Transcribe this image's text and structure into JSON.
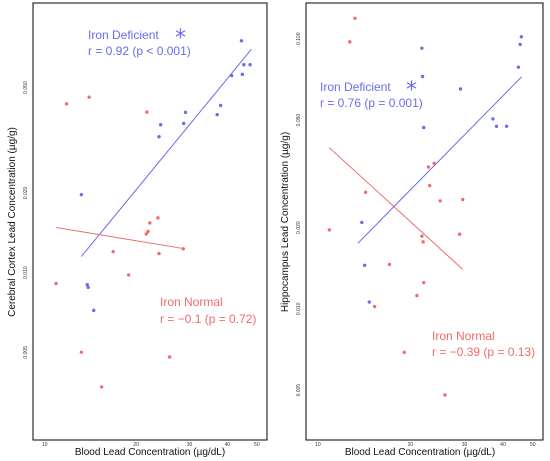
{
  "colors": {
    "iron_deficient": "#6b6bef",
    "iron_normal": "#f26b6b"
  },
  "chart_data": [
    {
      "type": "scatter",
      "xlabel": "Blood Lead Concentration (µg/dL)",
      "ylabel": "Cerebral Cortex Lead Concentration (µg/g)",
      "x_scale": "log",
      "y_scale": "log",
      "xlim": [
        9.5,
        52
      ],
      "ylim": [
        0.0025,
        0.09
      ],
      "x_ticks": [
        10,
        20,
        30,
        40,
        50
      ],
      "x_tick_labels": [
        "10",
        "20",
        "30",
        "40",
        "50"
      ],
      "y_ticks": [
        0.005,
        0.01,
        0.02,
        0.05
      ],
      "y_tick_labels": [
        "0.005",
        "0.010",
        "0.020",
        "0.050"
      ],
      "series": [
        {
          "name": "Iron Deficient",
          "color": "#6b6bef",
          "points": [
            [
              13.2,
              0.0197
            ],
            [
              13.8,
              0.009
            ],
            [
              13.9,
              0.0088
            ],
            [
              14.5,
              0.0072
            ],
            [
              23.8,
              0.0326
            ],
            [
              24.1,
              0.0362
            ],
            [
              28.7,
              0.0366
            ],
            [
              29.1,
              0.0403
            ],
            [
              37,
              0.0395
            ],
            [
              38,
              0.0428
            ],
            [
              41.3,
              0.0555
            ],
            [
              44.5,
              0.0751
            ],
            [
              44.8,
              0.0561
            ],
            [
              45.3,
              0.061
            ],
            [
              47.5,
              0.061
            ]
          ],
          "fit": {
            "x": [
              13.2,
              48
            ],
            "y": [
              0.0115,
              0.0698
            ]
          },
          "annotation": {
            "name": "Iron Deficient",
            "stat": "r = 0.92 (p < 0.001)",
            "marker": "*"
          }
        },
        {
          "name": "Iron Normal",
          "color": "#f26b6b",
          "points": [
            [
              10.9,
              0.0091
            ],
            [
              11.8,
              0.0434
            ],
            [
              13.2,
              0.005
            ],
            [
              14,
              0.046
            ],
            [
              15.4,
              0.0037
            ],
            [
              16.8,
              0.012
            ],
            [
              18.9,
              0.0098
            ],
            [
              21.6,
              0.014
            ],
            [
              21.7,
              0.0404
            ],
            [
              21.9,
              0.0143
            ],
            [
              22.2,
              0.0154
            ],
            [
              23.6,
              0.0161
            ],
            [
              23.8,
              0.0118
            ],
            [
              25.8,
              0.0048
            ],
            [
              28.6,
              0.0123
            ]
          ],
          "fit": {
            "x": [
              10.9,
              29
            ],
            "y": [
              0.0148,
              0.0123
            ]
          },
          "annotation": {
            "name": "Iron Normal",
            "stat": "r = −0.1 (p = 0.72)"
          }
        }
      ]
    },
    {
      "type": "scatter",
      "xlabel": "Blood Lead Concentration (µg/dL)",
      "ylabel": "Hippocampus Lead Concentration (µg/g)",
      "x_scale": "log",
      "y_scale": "log",
      "xlim": [
        9.5,
        52
      ],
      "ylim": [
        0.0035,
        0.13
      ],
      "x_ticks": [
        10,
        20,
        30,
        40,
        50
      ],
      "x_tick_labels": [
        "10",
        "20",
        "30",
        "40",
        "50"
      ],
      "y_ticks": [
        0.005,
        0.01,
        0.02,
        0.05,
        0.1
      ],
      "y_tick_labels": [
        "0.005",
        "0.010",
        "0.020",
        "0.050",
        "0.100"
      ],
      "series": [
        {
          "name": "Iron Deficient",
          "color": "#6b6bef",
          "points": [
            [
              13.9,
              0.0209
            ],
            [
              14.2,
              0.0145
            ],
            [
              14.7,
              0.0106
            ],
            [
              21.8,
              0.0923
            ],
            [
              21.9,
              0.0725
            ],
            [
              22.1,
              0.0469
            ],
            [
              29.1,
              0.0652
            ],
            [
              37.1,
              0.0505
            ],
            [
              38.1,
              0.0474
            ],
            [
              41.1,
              0.0474
            ],
            [
              44.9,
              0.0785
            ],
            [
              45.5,
              0.0953
            ],
            [
              45.9,
              0.1017
            ]
          ],
          "fit": {
            "x": [
              13.5,
              46
            ],
            "y": [
              0.0175,
              0.0723
            ]
          },
          "annotation": {
            "name": "Iron Deficient",
            "stat": "r = 0.76 (p = 0.001)",
            "marker": "*"
          }
        },
        {
          "name": "Iron Normal",
          "color": "#f26b6b",
          "points": [
            [
              10.9,
              0.0196
            ],
            [
              12.7,
              0.0974
            ],
            [
              13.2,
              0.1191
            ],
            [
              14.3,
              0.027
            ],
            [
              15.3,
              0.0102
            ],
            [
              17.1,
              0.0146
            ],
            [
              19.1,
              0.0069
            ],
            [
              21,
              0.0112
            ],
            [
              21.8,
              0.0186
            ],
            [
              22,
              0.0177
            ],
            [
              22.1,
              0.0125
            ],
            [
              22.9,
              0.0335
            ],
            [
              23.1,
              0.0286
            ],
            [
              23.9,
              0.0346
            ],
            [
              25,
              0.0251
            ],
            [
              25.9,
              0.0048
            ],
            [
              28.9,
              0.0189
            ],
            [
              29.6,
              0.0254
            ]
          ],
          "fit": {
            "x": [
              10.9,
              29.6
            ],
            "y": [
              0.0395,
              0.014
            ]
          },
          "annotation": {
            "name": "Iron Normal",
            "stat": "r = −0.39 (p = 0.13)"
          }
        }
      ]
    }
  ]
}
